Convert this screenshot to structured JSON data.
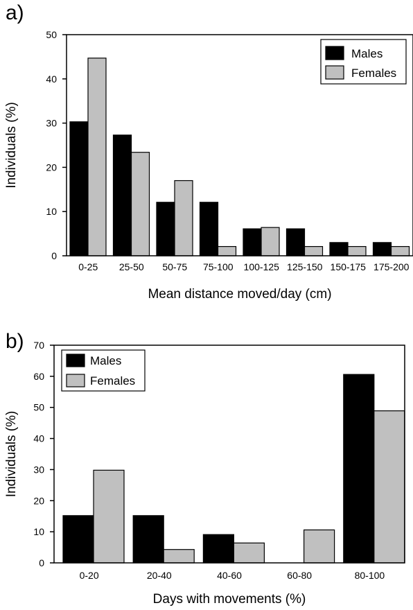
{
  "chart_data": [
    {
      "type": "bar",
      "panel_label": "a)",
      "xlabel": "Mean distance moved/day (cm)",
      "ylabel": "Individuals (%)",
      "ylim": [
        0,
        50
      ],
      "yticks": [
        0,
        10,
        20,
        30,
        40,
        50
      ],
      "legend_position": "top-right",
      "grid": false,
      "categories": [
        "0-25",
        "25-50",
        "50-75",
        "75-100",
        "100-125",
        "125-150",
        "150-175",
        "175-200"
      ],
      "series": [
        {
          "name": "Males",
          "color": "#000000",
          "values": [
            30.3,
            27.3,
            12.1,
            12.1,
            6.1,
            6.1,
            3.0,
            3.0
          ]
        },
        {
          "name": "Females",
          "color": "#c0c0c0",
          "values": [
            44.7,
            23.4,
            17.0,
            2.1,
            6.4,
            2.1,
            2.1,
            2.1
          ]
        }
      ]
    },
    {
      "type": "bar",
      "panel_label": "b)",
      "xlabel": "Days with movements (%)",
      "ylabel": "Individuals (%)",
      "ylim": [
        0,
        70
      ],
      "yticks": [
        0,
        10,
        20,
        30,
        40,
        50,
        60,
        70
      ],
      "legend_position": "top-left",
      "grid": false,
      "categories": [
        "0-20",
        "20-40",
        "40-60",
        "60-80",
        "80-100"
      ],
      "series": [
        {
          "name": "Males",
          "color": "#000000",
          "values": [
            15.2,
            15.2,
            9.1,
            0,
            60.6
          ]
        },
        {
          "name": "Females",
          "color": "#c0c0c0",
          "values": [
            29.8,
            4.3,
            6.4,
            10.6,
            48.9
          ]
        }
      ]
    }
  ]
}
